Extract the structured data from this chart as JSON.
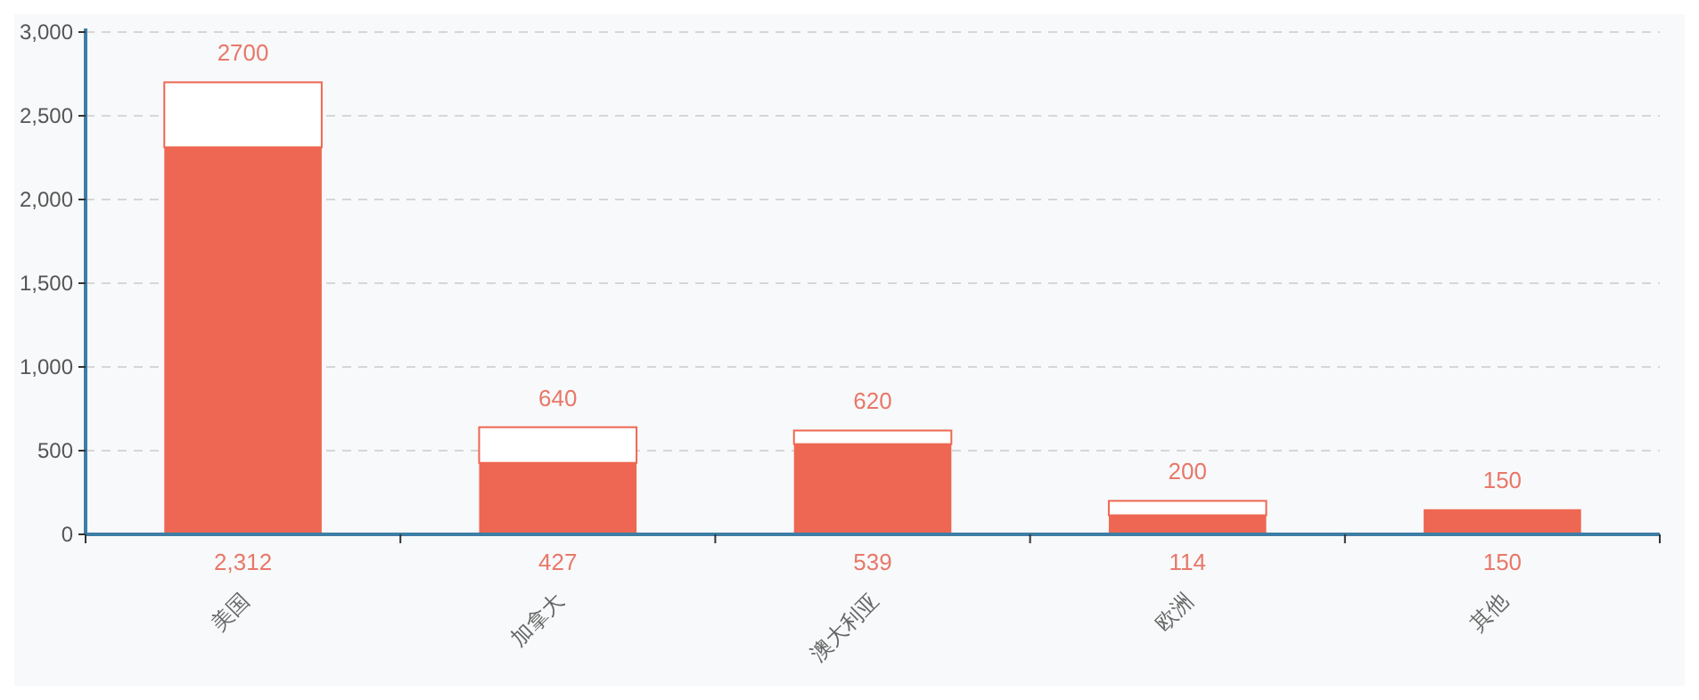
{
  "chart_data": {
    "type": "bar",
    "stacked": true,
    "categories": [
      "美国",
      "加拿大",
      "澳大利亚",
      "欧洲",
      "其他"
    ],
    "series": [
      {
        "color": "#ee6752",
        "values": [
          2312,
          427,
          539,
          114,
          150
        ],
        "value_labels": [
          "2,312",
          "427",
          "539",
          "114",
          "150"
        ]
      },
      {
        "color": "#ffffff",
        "values": [
          388,
          213,
          81,
          86,
          0
        ]
      }
    ],
    "totals": [
      "2700",
      "640",
      "620",
      "200",
      "150"
    ],
    "ylim": [
      0,
      3000
    ],
    "yticks": [
      {
        "value": 0,
        "label": "0"
      },
      {
        "value": 500,
        "label": "500"
      },
      {
        "value": 1000,
        "label": "1,000"
      },
      {
        "value": 1500,
        "label": "1,500"
      },
      {
        "value": 2000,
        "label": "2,000"
      },
      {
        "value": 2500,
        "label": "2,500"
      },
      {
        "value": 3000,
        "label": "3,000"
      }
    ],
    "grid": "y"
  }
}
